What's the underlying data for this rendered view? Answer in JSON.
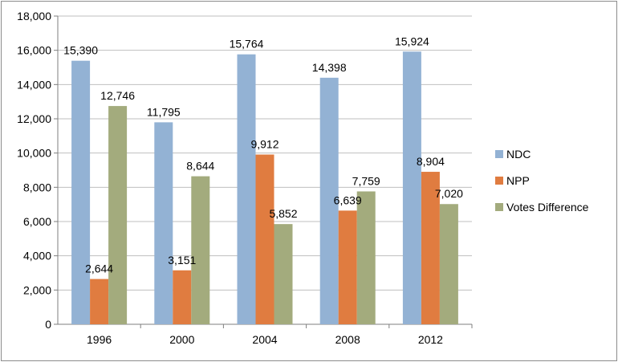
{
  "chart_data": {
    "type": "bar",
    "categories": [
      "1996",
      "2000",
      "2004",
      "2008",
      "2012"
    ],
    "series": [
      {
        "name": "NDC",
        "values": [
          15390,
          11795,
          15764,
          14398,
          15924
        ],
        "labels": [
          "15,390",
          "11,795",
          "15,764",
          "14,398",
          "15,924"
        ],
        "color": "#93b2d4"
      },
      {
        "name": "NPP",
        "values": [
          2644,
          3151,
          9912,
          6639,
          8904
        ],
        "labels": [
          "2,644",
          "3,151",
          "9,912",
          "6,639",
          "8,904"
        ],
        "color": "#e07c40"
      },
      {
        "name": "Votes Difference",
        "values": [
          12746,
          8644,
          5852,
          7759,
          7020
        ],
        "labels": [
          "12,746",
          "8,644",
          "5,852",
          "7,759",
          "7,020"
        ],
        "color": "#a3ab7d"
      }
    ],
    "ylim": [
      0,
      18000
    ],
    "yticks": [
      0,
      2000,
      4000,
      6000,
      8000,
      10000,
      12000,
      14000,
      16000,
      18000
    ],
    "ytick_labels": [
      "0",
      "2,000",
      "4,000",
      "6,000",
      "8,000",
      "10,000",
      "12,000",
      "14,000",
      "16,000",
      "18,000"
    ],
    "grid": true,
    "legend_position": "right"
  }
}
